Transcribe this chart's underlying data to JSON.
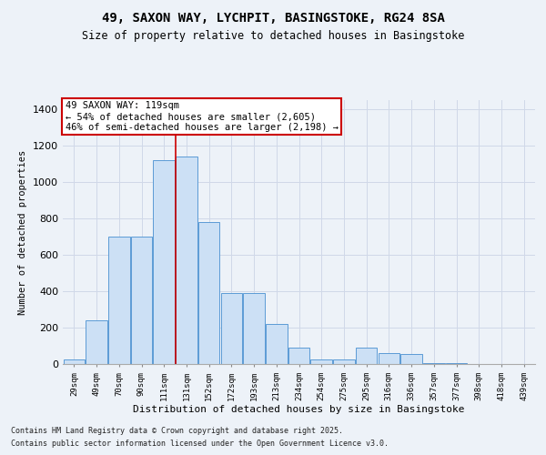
{
  "title1": "49, SAXON WAY, LYCHPIT, BASINGSTOKE, RG24 8SA",
  "title2": "Size of property relative to detached houses in Basingstoke",
  "xlabel": "Distribution of detached houses by size in Basingstoke",
  "ylabel": "Number of detached properties",
  "categories": [
    "29sqm",
    "49sqm",
    "70sqm",
    "90sqm",
    "111sqm",
    "131sqm",
    "152sqm",
    "172sqm",
    "193sqm",
    "213sqm",
    "234sqm",
    "254sqm",
    "275sqm",
    "295sqm",
    "316sqm",
    "336sqm",
    "357sqm",
    "377sqm",
    "398sqm",
    "418sqm",
    "439sqm"
  ],
  "values": [
    25,
    240,
    700,
    700,
    1120,
    1140,
    780,
    390,
    390,
    220,
    90,
    25,
    25,
    90,
    60,
    55,
    5,
    5,
    0,
    0,
    0
  ],
  "bar_color": "#cce0f5",
  "bar_edge_color": "#5b9bd5",
  "vline_color": "#cc0000",
  "vline_pos": 4.5,
  "annotation_text": "49 SAXON WAY: 119sqm\n← 54% of detached houses are smaller (2,605)\n46% of semi-detached houses are larger (2,198) →",
  "annotation_box_color": "#ffffff",
  "annotation_box_edge": "#cc0000",
  "ylim": [
    0,
    1450
  ],
  "yticks": [
    0,
    200,
    400,
    600,
    800,
    1000,
    1200,
    1400
  ],
  "grid_color": "#d0d8e8",
  "bg_color": "#edf2f8",
  "footer1": "Contains HM Land Registry data © Crown copyright and database right 2025.",
  "footer2": "Contains public sector information licensed under the Open Government Licence v3.0."
}
